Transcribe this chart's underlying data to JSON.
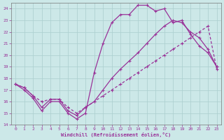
{
  "xlabel": "Windchill (Refroidissement éolien,°C)",
  "xlim": [
    -0.5,
    23.5
  ],
  "ylim": [
    14,
    24.5
  ],
  "xticks": [
    0,
    1,
    2,
    3,
    4,
    5,
    6,
    7,
    8,
    9,
    10,
    11,
    12,
    13,
    14,
    15,
    16,
    17,
    18,
    19,
    20,
    21,
    22,
    23
  ],
  "yticks": [
    14,
    15,
    16,
    17,
    18,
    19,
    20,
    21,
    22,
    23,
    24
  ],
  "line_color": "#993399",
  "bg_color": "#cce8e8",
  "grid_color": "#aacece",
  "line1_x": [
    0,
    1,
    2,
    3,
    4,
    5,
    6,
    7,
    8,
    9,
    10,
    11,
    12,
    13,
    14,
    15,
    16,
    17,
    18,
    19,
    20,
    21,
    22,
    23
  ],
  "line1_y": [
    17.5,
    17.0,
    16.3,
    15.2,
    16.0,
    16.0,
    15.0,
    14.5,
    15.0,
    18.5,
    21.0,
    22.8,
    23.5,
    23.5,
    24.3,
    24.3,
    23.8,
    24.0,
    22.8,
    23.0,
    21.8,
    20.8,
    20.2,
    19.0
  ],
  "line2_x": [
    0,
    1,
    2,
    3,
    4,
    5,
    6,
    7,
    8,
    9,
    10,
    11,
    12,
    13,
    14,
    15,
    16,
    17,
    18,
    19,
    20,
    21,
    22,
    23
  ],
  "line2_y": [
    17.5,
    17.2,
    16.5,
    15.5,
    16.2,
    16.2,
    15.2,
    14.8,
    15.5,
    16.0,
    17.0,
    18.0,
    18.8,
    19.5,
    20.2,
    21.0,
    21.8,
    22.5,
    23.0,
    22.8,
    22.0,
    21.5,
    20.5,
    19.0
  ],
  "line3_x": [
    0,
    1,
    2,
    3,
    4,
    5,
    6,
    7,
    8,
    9,
    10,
    11,
    12,
    13,
    14,
    15,
    16,
    17,
    18,
    19,
    20,
    21,
    22,
    23
  ],
  "line3_y": [
    17.5,
    17.2,
    16.5,
    16.0,
    16.2,
    16.2,
    15.5,
    15.0,
    15.5,
    16.0,
    16.5,
    17.0,
    17.5,
    18.0,
    18.5,
    19.0,
    19.5,
    20.0,
    20.5,
    21.0,
    21.5,
    22.0,
    22.5,
    18.8
  ]
}
